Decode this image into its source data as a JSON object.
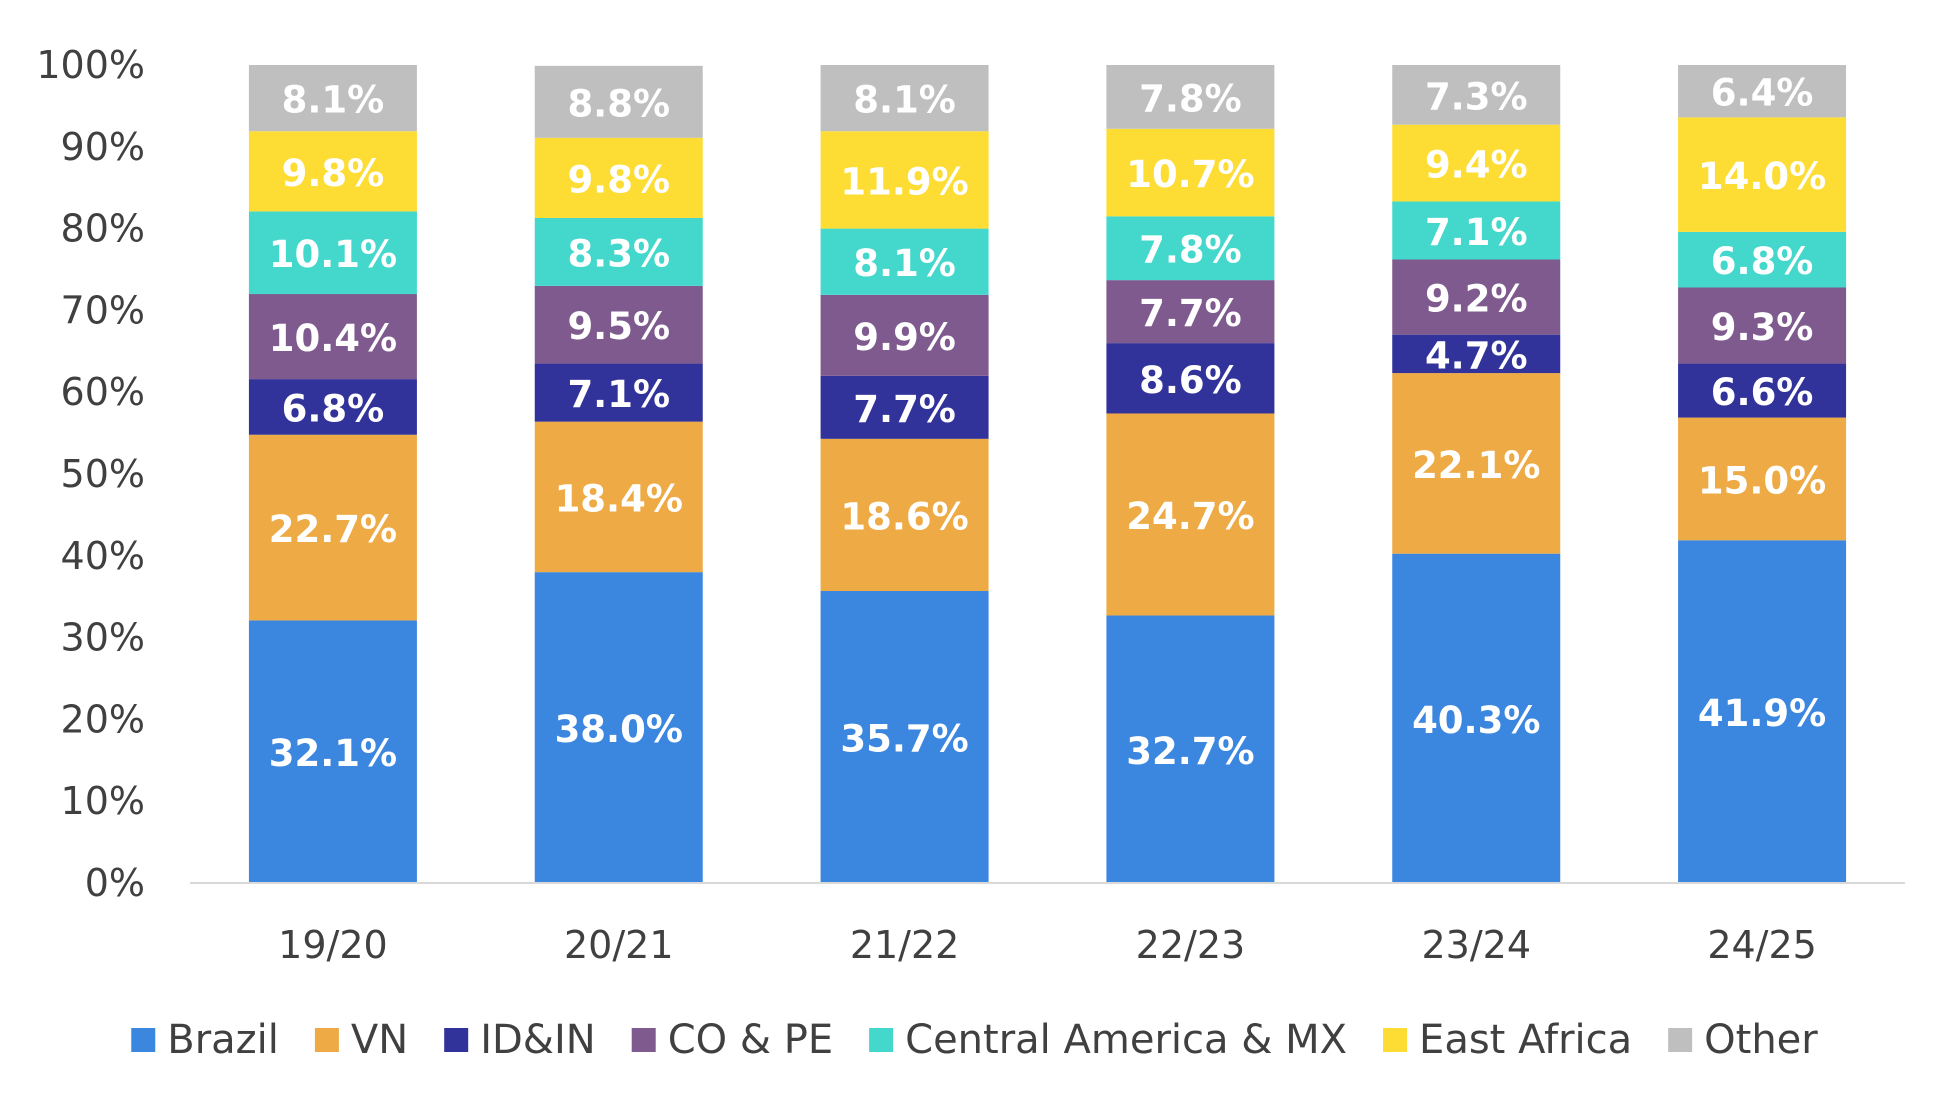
{
  "chart_data": {
    "type": "bar",
    "stacked": true,
    "title": "",
    "xlabel": "",
    "ylabel": "",
    "ylim": [
      0,
      100
    ],
    "y_ticks": [
      "0%",
      "10%",
      "20%",
      "30%",
      "40%",
      "50%",
      "60%",
      "70%",
      "80%",
      "90%",
      "100%"
    ],
    "grid": false,
    "legend_position": "bottom",
    "categories": [
      "19/20",
      "20/21",
      "21/22",
      "22/23",
      "23/24",
      "24/25"
    ],
    "series": [
      {
        "name": "Brazil",
        "color": "#3B86DF",
        "values": [
          32.1,
          38.0,
          35.7,
          32.7,
          40.3,
          41.9
        ],
        "labels": [
          "32.1%",
          "38.0%",
          "35.7%",
          "32.7%",
          "40.3%",
          "41.9%"
        ]
      },
      {
        "name": "VN",
        "color": "#EEAA45",
        "values": [
          22.7,
          18.4,
          18.6,
          24.7,
          22.1,
          15.0
        ],
        "labels": [
          "22.7%",
          "18.4%",
          "18.6%",
          "24.7%",
          "22.1%",
          "15.0%"
        ]
      },
      {
        "name": "ID&IN",
        "color": "#32339A",
        "values": [
          6.8,
          7.1,
          7.7,
          8.6,
          4.7,
          6.6
        ],
        "labels": [
          "6.8%",
          "7.1%",
          "7.7%",
          "8.6%",
          "4.7%",
          "6.6%"
        ]
      },
      {
        "name": "CO & PE",
        "color": "#7F5A8E",
        "values": [
          10.4,
          9.5,
          9.9,
          7.7,
          9.2,
          9.3
        ],
        "labels": [
          "10.4%",
          "9.5%",
          "9.9%",
          "7.7%",
          "9.2%",
          "9.3%"
        ]
      },
      {
        "name": "Central America & MX",
        "color": "#44D8CC",
        "values": [
          10.1,
          8.3,
          8.1,
          7.8,
          7.1,
          6.8
        ],
        "labels": [
          "10.1%",
          "8.3%",
          "8.1%",
          "7.8%",
          "7.1%",
          "6.8%"
        ]
      },
      {
        "name": "East Africa",
        "color": "#FDDD34",
        "values": [
          9.8,
          9.8,
          11.9,
          10.7,
          9.4,
          14.0
        ],
        "labels": [
          "9.8%",
          "9.8%",
          "11.9%",
          "10.7%",
          "9.4%",
          "14.0%"
        ]
      },
      {
        "name": "Other",
        "color": "#BFBFBF",
        "values": [
          8.1,
          8.8,
          8.1,
          7.8,
          7.3,
          6.4
        ],
        "labels": [
          "8.1%",
          "8.8%",
          "8.1%",
          "7.8%",
          "7.3%",
          "6.4%"
        ]
      }
    ]
  }
}
